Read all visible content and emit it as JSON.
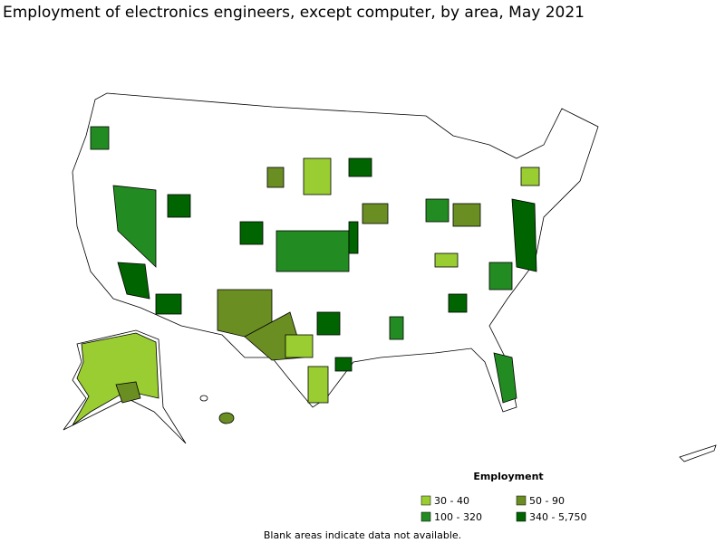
{
  "title": "Employment of electronics engineers, except computer, by area, May 2021",
  "legend": {
    "title": "Employment",
    "items": [
      {
        "label": "30 - 40",
        "color": "#9acd32"
      },
      {
        "label": "50 - 90",
        "color": "#6b8e23"
      },
      {
        "label": "100 - 320",
        "color": "#228b22"
      },
      {
        "label": "340 - 5,750",
        "color": "#006400"
      }
    ]
  },
  "note": "Blank areas indicate data not available."
}
